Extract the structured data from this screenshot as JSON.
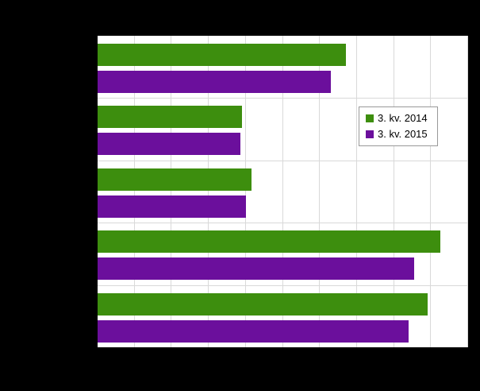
{
  "chart_data": {
    "type": "bar",
    "orientation": "horizontal",
    "title": "",
    "categories": [
      "",
      "",
      "",
      "",
      ""
    ],
    "series": [
      {
        "name": "3. kv. 2014",
        "color": "#3d8e0e",
        "values": [
          67,
          39,
          41.5,
          92.5,
          89
        ]
      },
      {
        "name": "3. kv. 2015",
        "color": "#6b0f9c",
        "values": [
          63,
          38.5,
          40,
          85.5,
          84
        ]
      }
    ],
    "value_axis": {
      "min": 0,
      "max": 100,
      "tick_interval": 10,
      "gridlines": true
    },
    "category_gridlines": true,
    "legend": {
      "position": "inside-right",
      "entries": [
        "3. kv. 2014",
        "3. kv. 2015"
      ]
    }
  },
  "colors": {
    "background": "#000000",
    "plot_background": "#ffffff",
    "gridline": "#d9d9d9",
    "series_2014": "#3d8e0e",
    "series_2015": "#6b0f9c"
  }
}
